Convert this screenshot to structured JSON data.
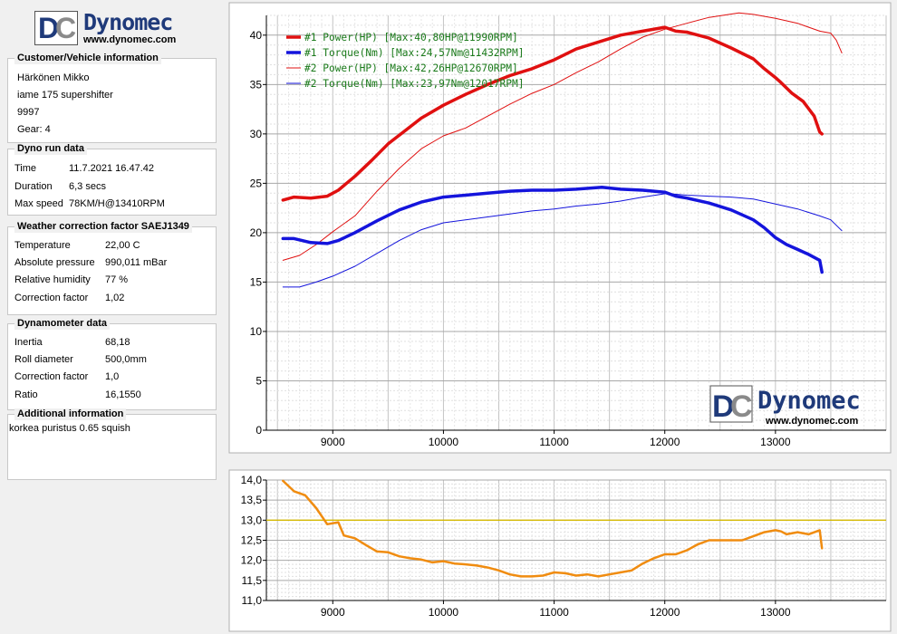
{
  "header_logo": {
    "brand": "Dynomec",
    "url": "www.dynomec.com",
    "letters": "DC"
  },
  "watermark_logo": {
    "brand": "Dynomec",
    "url": "www.dynomec.com",
    "letters": "DC"
  },
  "customer": {
    "title": "Customer/Vehicle information",
    "lines": [
      "Härkönen Mikko",
      "iame 175 supershifter",
      "9997",
      "Gear: 4"
    ]
  },
  "dyno_run": {
    "title": "Dyno run data",
    "rows": [
      {
        "label": "Time",
        "value": "11.7.2021 16.47.42"
      },
      {
        "label": "Duration",
        "value": "6,3 secs"
      },
      {
        "label": "Max speed",
        "value": "78KM/H@13410RPM"
      }
    ]
  },
  "weather": {
    "title": "Weather correction factor SAEJ1349",
    "rows": [
      {
        "label": "Temperature",
        "value": "22,00 C"
      },
      {
        "label": "Absolute pressure",
        "value": "990,011 mBar"
      },
      {
        "label": "Relative humidity",
        "value": "77 %"
      },
      {
        "label": "Correction factor",
        "value": "1,02"
      }
    ]
  },
  "dynamometer": {
    "title": "Dynamometer data",
    "rows": [
      {
        "label": "Inertia",
        "value": "68,18"
      },
      {
        "label": "Roll diameter",
        "value": "500,0mm"
      },
      {
        "label": "Correction factor",
        "value": "1,0"
      },
      {
        "label": "Ratio",
        "value": "16,1550"
      }
    ]
  },
  "additional": {
    "title": "Additional information",
    "text": "korkea puristus 0.65 squish"
  },
  "chart_data": [
    {
      "type": "line",
      "xlim": [
        8400,
        14000
      ],
      "ylim": [
        0,
        42
      ],
      "x_ticks": [
        9000,
        10000,
        11000,
        12000,
        13000
      ],
      "y_ticks": [
        0,
        5,
        10,
        15,
        20,
        25,
        30,
        35,
        40
      ],
      "grid": true,
      "legend_position": "top-left",
      "series": [
        {
          "name": "#1 Power(HP)",
          "legend": "#1 Power(HP)  [Max:40,80HP@11990RPM]",
          "color": "#e01010",
          "bold": true,
          "x": [
            8550,
            8650,
            8800,
            8950,
            9050,
            9200,
            9350,
            9500,
            9650,
            9800,
            10000,
            10200,
            10400,
            10600,
            10800,
            11000,
            11200,
            11400,
            11600,
            11800,
            12000,
            12100,
            12200,
            12400,
            12600,
            12800,
            12900,
            13000,
            13050,
            13150,
            13250,
            13350,
            13400,
            13420
          ],
          "y": [
            23.3,
            23.6,
            23.5,
            23.7,
            24.3,
            25.7,
            27.3,
            29.0,
            30.3,
            31.6,
            32.9,
            34.0,
            35.0,
            35.9,
            36.6,
            37.5,
            38.6,
            39.3,
            40.0,
            40.4,
            40.8,
            40.4,
            40.3,
            39.7,
            38.7,
            37.6,
            36.6,
            35.7,
            35.2,
            34.1,
            33.3,
            31.8,
            30.2,
            30.0
          ]
        },
        {
          "name": "#1 Torque(Nm)",
          "legend": "#1 Torque(Nm)  [Max:24,57Nm@11432RPM]",
          "color": "#1414dc",
          "bold": true,
          "x": [
            8550,
            8650,
            8800,
            8950,
            9050,
            9200,
            9400,
            9600,
            9800,
            10000,
            10200,
            10400,
            10600,
            10800,
            11000,
            11200,
            11432,
            11600,
            11800,
            12000,
            12100,
            12200,
            12400,
            12600,
            12800,
            12900,
            13000,
            13100,
            13200,
            13300,
            13400,
            13420
          ],
          "y": [
            19.4,
            19.4,
            19.0,
            18.9,
            19.2,
            20.0,
            21.2,
            22.3,
            23.1,
            23.6,
            23.8,
            24.0,
            24.2,
            24.3,
            24.3,
            24.4,
            24.6,
            24.4,
            24.3,
            24.1,
            23.7,
            23.5,
            23.0,
            22.3,
            21.3,
            20.5,
            19.5,
            18.8,
            18.3,
            17.8,
            17.2,
            16.0
          ]
        },
        {
          "name": "#2 Power(HP)",
          "legend": "#2 Power(HP)  [Max:42,26HP@12670RPM]",
          "color": "#e01010",
          "bold": false,
          "x": [
            8550,
            8700,
            8850,
            9000,
            9200,
            9400,
            9600,
            9800,
            10000,
            10200,
            10400,
            10600,
            10800,
            11000,
            11200,
            11400,
            11600,
            11800,
            12000,
            12200,
            12400,
            12670,
            12800,
            13000,
            13200,
            13400,
            13500,
            13550,
            13600
          ],
          "y": [
            17.2,
            17.7,
            18.8,
            20.1,
            21.7,
            24.2,
            26.5,
            28.5,
            29.8,
            30.6,
            31.8,
            33.0,
            34.1,
            35.0,
            36.2,
            37.3,
            38.6,
            39.8,
            40.6,
            41.2,
            41.8,
            42.26,
            42.1,
            41.7,
            41.2,
            40.4,
            40.2,
            39.5,
            38.2
          ]
        },
        {
          "name": "#2 Torque(Nm)",
          "legend": "#2 Torque(Nm)  [Max:23,97Nm@12017RPM]",
          "color": "#1414dc",
          "bold": false,
          "x": [
            8550,
            8700,
            8850,
            9000,
            9200,
            9400,
            9600,
            9800,
            10000,
            10200,
            10400,
            10600,
            10800,
            11000,
            11200,
            11400,
            11600,
            11800,
            12017,
            12200,
            12400,
            12600,
            12800,
            13000,
            13200,
            13400,
            13500,
            13600
          ],
          "y": [
            14.5,
            14.5,
            15.0,
            15.6,
            16.6,
            17.9,
            19.2,
            20.3,
            21.0,
            21.3,
            21.6,
            21.9,
            22.2,
            22.4,
            22.7,
            22.9,
            23.2,
            23.6,
            23.97,
            23.8,
            23.7,
            23.6,
            23.4,
            22.9,
            22.4,
            21.7,
            21.3,
            20.2
          ]
        }
      ]
    },
    {
      "type": "line",
      "xlim": [
        8400,
        14000
      ],
      "ylim": [
        11.0,
        14.0
      ],
      "x_ticks": [
        9000,
        10000,
        11000,
        12000,
        13000
      ],
      "y_ticks": [
        11.0,
        11.5,
        12.0,
        12.5,
        13.0,
        13.5,
        14.0
      ],
      "y_tick_labels": [
        "11,0",
        "11,5",
        "12,0",
        "12,5",
        "13,0",
        "13,5",
        "14,0"
      ],
      "grid": true,
      "reference_line": {
        "y": 13.0,
        "color": "#d4b800"
      },
      "series": [
        {
          "color": "#f08c10",
          "x": [
            8550,
            8650,
            8750,
            8850,
            8950,
            9050,
            9100,
            9200,
            9300,
            9400,
            9500,
            9600,
            9700,
            9800,
            9900,
            10000,
            10100,
            10200,
            10300,
            10400,
            10500,
            10600,
            10700,
            10800,
            10900,
            11000,
            11100,
            11200,
            11300,
            11400,
            11500,
            11600,
            11700,
            11800,
            11900,
            12000,
            12100,
            12200,
            12300,
            12400,
            12500,
            12600,
            12700,
            12800,
            12900,
            13000,
            13050,
            13100,
            13200,
            13300,
            13400,
            13420
          ],
          "y": [
            13.98,
            13.72,
            13.62,
            13.3,
            12.9,
            12.95,
            12.62,
            12.55,
            12.38,
            12.22,
            12.2,
            12.1,
            12.05,
            12.02,
            11.95,
            11.98,
            11.92,
            11.9,
            11.87,
            11.82,
            11.75,
            11.65,
            11.6,
            11.6,
            11.62,
            11.7,
            11.68,
            11.62,
            11.65,
            11.6,
            11.65,
            11.7,
            11.75,
            11.92,
            12.05,
            12.15,
            12.15,
            12.25,
            12.4,
            12.5,
            12.5,
            12.5,
            12.5,
            12.6,
            12.7,
            12.75,
            12.72,
            12.65,
            12.7,
            12.65,
            12.75,
            12.3
          ]
        }
      ]
    }
  ]
}
